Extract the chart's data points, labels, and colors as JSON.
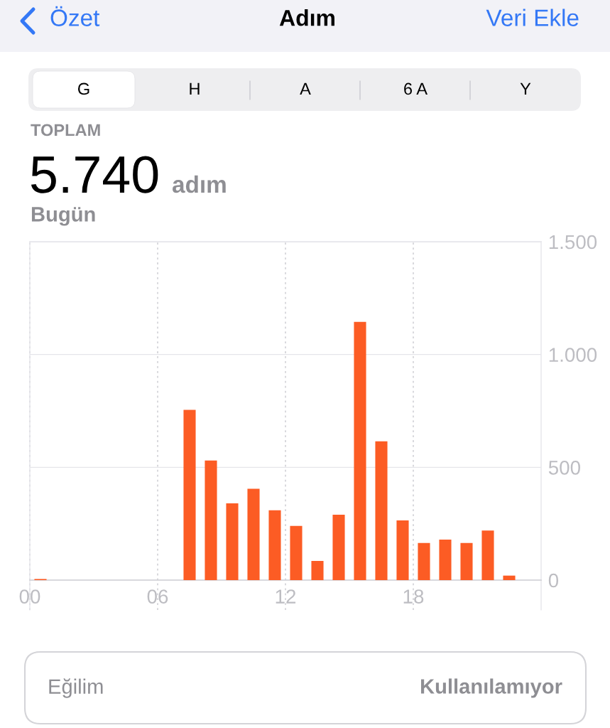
{
  "chart_data": {
    "type": "bar",
    "title": "Adım",
    "annotations": [
      "Özet",
      "Veri Ekle",
      "G",
      "H",
      "A",
      "6 A",
      "Y",
      "TOPLAM",
      "5.740",
      "adım",
      "Bugün",
      "Eğilim",
      "Kullanılamıyor"
    ],
    "x": [
      0.5,
      7.5,
      8.5,
      9.5,
      10.5,
      11.5,
      12.5,
      13.5,
      14.5,
      15.5,
      16.5,
      17.5,
      18.5,
      19.5,
      20.5,
      21.5,
      22.5
    ],
    "values": [
      5,
      755,
      530,
      340,
      405,
      310,
      240,
      85,
      290,
      1145,
      615,
      265,
      165,
      180,
      165,
      220,
      20
    ],
    "color": "#fc5c24",
    "xlim": [
      0,
      24
    ],
    "xticks": [
      {
        "value": 0,
        "label": "00"
      },
      {
        "value": 6,
        "label": "06"
      },
      {
        "value": 12,
        "label": "12"
      },
      {
        "value": 18,
        "label": "18"
      }
    ],
    "ylim": [
      0,
      1500
    ],
    "yticks": [
      0,
      500,
      {
        "value": 1000,
        "label": "1.000"
      },
      {
        "value": 1500,
        "label": "1.500"
      }
    ],
    "grid": true
  }
}
